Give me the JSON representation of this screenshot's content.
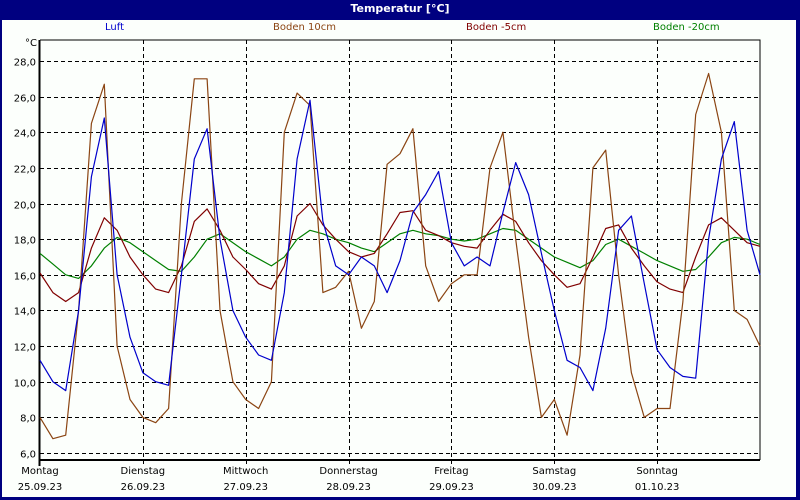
{
  "window": {
    "title": "Temperatur [°C]"
  },
  "legend": [
    {
      "label": "Luft",
      "color": "#0000cc"
    },
    {
      "label": "Boden 10cm",
      "color": "#8b4513"
    },
    {
      "label": "Boden -5cm",
      "color": "#800000"
    },
    {
      "label": "Boden -20cm",
      "color": "#008000"
    }
  ],
  "axis": {
    "unit": "°C"
  },
  "chart_data": {
    "type": "line",
    "title": "Temperatur [°C]",
    "xlabel": "",
    "ylabel": "°C",
    "ylim": [
      6.0,
      28.0
    ],
    "yticks": [
      "6,0",
      "8,0",
      "10,0",
      "12,0",
      "14,0",
      "16,0",
      "18,0",
      "20,0",
      "22,0",
      "24,0",
      "26,0",
      "28,0"
    ],
    "grid": true,
    "legend_position": "top",
    "categories": [
      {
        "day": "Montag",
        "date": "25.09.23"
      },
      {
        "day": "Dienstag",
        "date": "26.09.23"
      },
      {
        "day": "Mittwoch",
        "date": "27.09.23"
      },
      {
        "day": "Donnerstag",
        "date": "28.09.23"
      },
      {
        "day": "Freitag",
        "date": "29.09.23"
      },
      {
        "day": "Samstag",
        "date": "30.09.23"
      },
      {
        "day": "Sonntag",
        "date": "01.10.23"
      }
    ],
    "x_days": [
      0,
      0.125,
      0.25,
      0.375,
      0.5,
      0.625,
      0.75,
      0.875,
      1,
      1.125,
      1.25,
      1.375,
      1.5,
      1.625,
      1.75,
      1.875,
      2,
      2.125,
      2.25,
      2.375,
      2.5,
      2.625,
      2.75,
      2.875,
      3,
      3.125,
      3.25,
      3.375,
      3.5,
      3.625,
      3.75,
      3.875,
      4,
      4.125,
      4.25,
      4.375,
      4.5,
      4.625,
      4.75,
      4.875,
      5,
      5.125,
      5.25,
      5.375,
      5.5,
      5.625,
      5.75,
      5.875,
      6,
      6.125,
      6.25,
      6.375,
      6.5,
      6.625,
      6.75,
      6.875,
      7
    ],
    "series": [
      {
        "name": "Luft",
        "color": "#0000cc",
        "values": [
          11.2,
          10.0,
          9.5,
          14.0,
          21.5,
          24.8,
          16.0,
          12.5,
          10.5,
          10.0,
          9.8,
          16.0,
          22.5,
          24.2,
          18.0,
          14.0,
          12.5,
          11.5,
          11.2,
          15.0,
          22.5,
          25.8,
          19.0,
          16.5,
          16.0,
          17.0,
          16.5,
          15.0,
          16.8,
          19.5,
          20.5,
          21.8,
          17.8,
          16.5,
          17.0,
          16.5,
          19.5,
          22.3,
          20.5,
          17.2,
          14.0,
          11.2,
          10.8,
          9.5,
          13.0,
          18.5,
          19.3,
          15.5,
          11.8,
          10.8,
          10.3,
          10.2,
          18.0,
          22.5,
          24.6,
          18.5,
          16.0
        ]
      },
      {
        "name": "Boden 10cm",
        "color": "#8b4513",
        "values": [
          8.0,
          6.8,
          7.0,
          14.0,
          24.5,
          26.7,
          12.0,
          9.0,
          8.0,
          7.7,
          8.5,
          20.0,
          27.0,
          27.0,
          14.0,
          10.0,
          9.0,
          8.5,
          10.0,
          24.0,
          26.2,
          25.5,
          15.0,
          15.3,
          16.2,
          13.0,
          14.5,
          22.2,
          22.8,
          24.2,
          16.5,
          14.5,
          15.5,
          16.0,
          16.0,
          22.0,
          24.0,
          18.0,
          12.5,
          8.0,
          9.0,
          7.0,
          11.5,
          22.0,
          23.0,
          16.0,
          10.5,
          8.0,
          8.5,
          8.5,
          14.5,
          25.0,
          27.3,
          24.0,
          14.0,
          13.5,
          12.0
        ]
      },
      {
        "name": "Boden -5cm",
        "color": "#800000",
        "values": [
          16.1,
          15.0,
          14.5,
          15.0,
          17.5,
          19.2,
          18.5,
          17.0,
          16.0,
          15.2,
          15.0,
          16.5,
          19.0,
          19.7,
          18.5,
          17.0,
          16.3,
          15.5,
          15.2,
          16.5,
          19.3,
          20.0,
          18.8,
          18.0,
          17.3,
          17.0,
          17.2,
          18.3,
          19.5,
          19.6,
          18.5,
          18.2,
          17.8,
          17.6,
          17.5,
          18.5,
          19.4,
          19.0,
          17.8,
          16.8,
          16.0,
          15.3,
          15.5,
          17.0,
          18.6,
          18.8,
          17.5,
          16.5,
          15.6,
          15.2,
          15.0,
          17.0,
          18.8,
          19.2,
          18.5,
          17.8,
          17.6
        ]
      },
      {
        "name": "Boden -20cm",
        "color": "#008000",
        "values": [
          17.2,
          16.6,
          16.0,
          15.8,
          16.5,
          17.5,
          18.1,
          17.8,
          17.3,
          16.8,
          16.3,
          16.2,
          17.0,
          18.0,
          18.3,
          17.8,
          17.3,
          16.9,
          16.5,
          17.0,
          18.0,
          18.5,
          18.3,
          18.0,
          17.8,
          17.5,
          17.3,
          17.8,
          18.3,
          18.5,
          18.3,
          18.2,
          18.0,
          17.9,
          18.0,
          18.3,
          18.6,
          18.5,
          18.0,
          17.5,
          17.0,
          16.7,
          16.4,
          16.8,
          17.7,
          18.0,
          17.6,
          17.2,
          16.8,
          16.5,
          16.2,
          16.3,
          17.0,
          17.8,
          18.1,
          18.0,
          17.7
        ]
      }
    ]
  }
}
